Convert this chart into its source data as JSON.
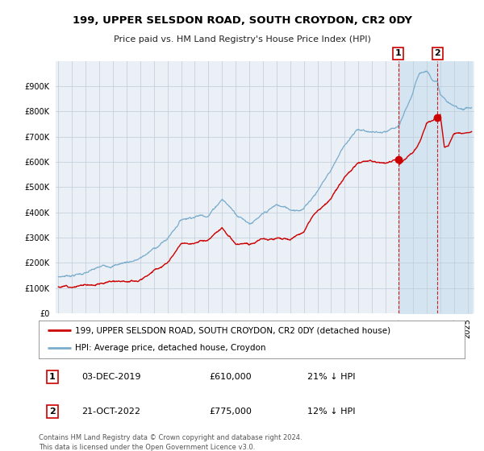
{
  "title": "199, UPPER SELSDON ROAD, SOUTH CROYDON, CR2 0DY",
  "subtitle": "Price paid vs. HM Land Registry's House Price Index (HPI)",
  "legend_line1": "199, UPPER SELSDON ROAD, SOUTH CROYDON, CR2 0DY (detached house)",
  "legend_line2": "HPI: Average price, detached house, Croydon",
  "annotation1_num": "1",
  "annotation1_date": "03-DEC-2019",
  "annotation1_price": "£610,000",
  "annotation1_hpi": "21% ↓ HPI",
  "annotation2_num": "2",
  "annotation2_date": "21-OCT-2022",
  "annotation2_price": "£775,000",
  "annotation2_hpi": "12% ↓ HPI",
  "footer": "Contains HM Land Registry data © Crown copyright and database right 2024.\nThis data is licensed under the Open Government Licence v3.0.",
  "ylim": [
    0,
    1000000
  ],
  "yticks": [
    0,
    100000,
    200000,
    300000,
    400000,
    500000,
    600000,
    700000,
    800000,
    900000
  ],
  "red_color": "#cc0000",
  "blue_color": "#7aaccc",
  "background_plot": "#eaf0f6",
  "background_shaded": "#d4e4f0",
  "grid_color": "#c0ccd8",
  "marker1_x": 2019.92,
  "marker1_y": 610000,
  "marker2_x": 2022.79,
  "marker2_y": 775000,
  "vline1_x": 2019.92,
  "vline2_x": 2022.79,
  "xmin": 1994.8,
  "xmax": 2025.5,
  "shaded_xmin": 2019.92,
  "title_fontsize": 9.5,
  "subtitle_fontsize": 8,
  "tick_fontsize": 7,
  "legend_fontsize": 7.5,
  "ann_fontsize": 8,
  "footer_fontsize": 6
}
